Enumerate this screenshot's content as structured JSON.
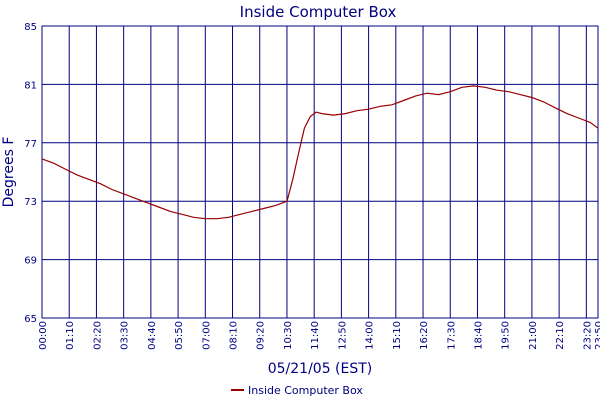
{
  "chart_data": {
    "type": "line",
    "title": "Inside Computer Box",
    "xlabel": "05/21/05 (EST)",
    "ylabel": "Degrees F",
    "ylim": [
      65,
      85
    ],
    "yticks": [
      65,
      69,
      73,
      77,
      81,
      85
    ],
    "xlim_minutes": [
      0,
      1430
    ],
    "xtick_labels": [
      "00:00",
      "01:10",
      "02:20",
      "03:30",
      "04:40",
      "05:50",
      "07:00",
      "08:10",
      "09:20",
      "10:30",
      "11:40",
      "12:50",
      "14:00",
      "15:10",
      "16:20",
      "17:30",
      "18:40",
      "19:50",
      "21:00",
      "22:10",
      "23:20",
      "23:50"
    ],
    "grid": true,
    "legend_position": "bottom-center",
    "colors": {
      "line": "#990000",
      "grid": "#000080",
      "text": "#000080"
    },
    "series": [
      {
        "name": "Inside Computer Box",
        "x": [
          "00:00",
          "00:30",
          "01:00",
          "01:30",
          "02:00",
          "02:30",
          "03:00",
          "03:30",
          "04:00",
          "04:30",
          "05:00",
          "05:30",
          "06:00",
          "06:30",
          "07:00",
          "07:30",
          "08:00",
          "08:30",
          "09:00",
          "09:30",
          "10:00",
          "10:30",
          "10:45",
          "11:00",
          "11:15",
          "11:30",
          "11:45",
          "12:00",
          "12:30",
          "13:00",
          "13:30",
          "14:00",
          "14:30",
          "15:00",
          "15:30",
          "16:00",
          "16:30",
          "17:00",
          "17:30",
          "18:00",
          "18:30",
          "19:00",
          "19:30",
          "20:00",
          "20:30",
          "21:00",
          "21:30",
          "22:00",
          "22:30",
          "23:00",
          "23:30",
          "23:50"
        ],
        "values": [
          75.9,
          75.6,
          75.2,
          74.8,
          74.5,
          74.2,
          73.8,
          73.5,
          73.2,
          72.9,
          72.6,
          72.3,
          72.1,
          71.9,
          71.8,
          71.8,
          71.9,
          72.1,
          72.3,
          72.5,
          72.7,
          73.0,
          74.5,
          76.3,
          78.0,
          78.8,
          79.1,
          79.0,
          78.9,
          79.0,
          79.2,
          79.3,
          79.5,
          79.6,
          79.9,
          80.2,
          80.4,
          80.3,
          80.5,
          80.8,
          80.9,
          80.8,
          80.6,
          80.5,
          80.3,
          80.1,
          79.8,
          79.4,
          79.0,
          78.7,
          78.4,
          78.0
        ]
      }
    ]
  }
}
